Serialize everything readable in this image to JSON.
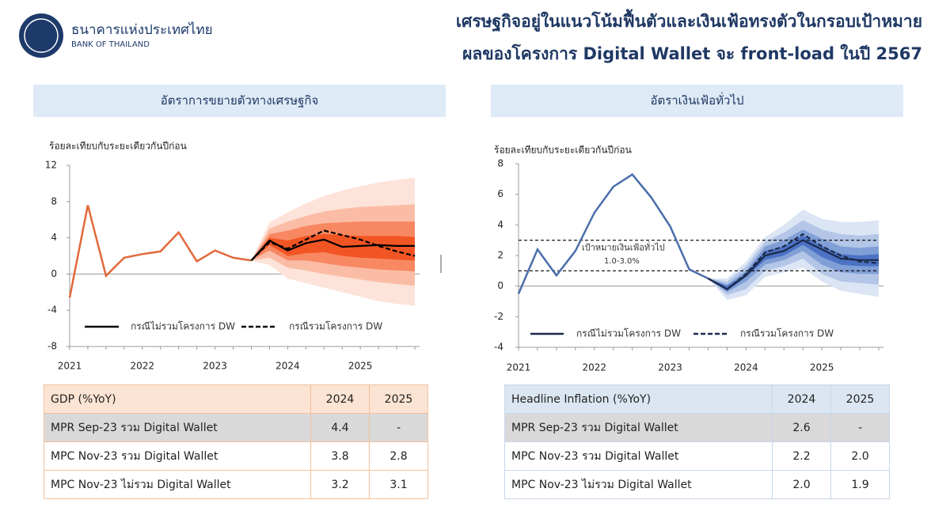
{
  "header": {
    "bank_name_th": "ธนาคารแห่งประเทศไทย",
    "bank_name_en": "BANK OF THAILAND",
    "title_lines": [
      "เศรษฐกิจอยู่ในแนวโน้มฟื้นตัวและเงินเฟ้อทรงตัวในกรอบเป้าหมาย",
      "ผลของโครงการ Digital Wallet จะ front-load ในปี 2567"
    ]
  },
  "chart_data": [
    {
      "type": "line",
      "title": "อัตราการขยายตัวทางเศรษฐกิจ",
      "y_label": "ร้อยละเทียบกับระยะเดียวกันปีก่อน",
      "categories": [
        "2021",
        null,
        null,
        null,
        "2022",
        null,
        null,
        null,
        "2023",
        null,
        null,
        null,
        "2024",
        null,
        null,
        null,
        "2025",
        null,
        null,
        null
      ],
      "ylim": [
        -8,
        12
      ],
      "yticks": [
        -8,
        -4,
        0,
        4,
        8,
        12
      ],
      "fan": [
        {
          "color": "#fde3d9",
          "upper": [
            null,
            null,
            null,
            null,
            null,
            null,
            null,
            null,
            null,
            null,
            1.5,
            5.7,
            6.8,
            7.8,
            8.6,
            9.2,
            9.7,
            10.1,
            10.4,
            10.6
          ],
          "lower": [
            null,
            null,
            null,
            null,
            null,
            null,
            null,
            null,
            null,
            null,
            1.5,
            1.0,
            -0.5,
            -1.0,
            -1.5,
            -2.0,
            -2.5,
            -3.0,
            -3.3,
            -3.5
          ]
        },
        {
          "color": "#fbbca6",
          "upper": [
            null,
            null,
            null,
            null,
            null,
            null,
            null,
            null,
            null,
            null,
            1.5,
            5.0,
            5.8,
            6.4,
            6.9,
            7.2,
            7.4,
            7.5,
            7.6,
            7.7
          ],
          "lower": [
            null,
            null,
            null,
            null,
            null,
            null,
            null,
            null,
            null,
            null,
            1.5,
            1.8,
            0.7,
            0.4,
            0,
            -0.3,
            -0.6,
            -0.9,
            -1.1,
            -1.3
          ]
        },
        {
          "color": "#f88862",
          "upper": [
            null,
            null,
            null,
            null,
            null,
            null,
            null,
            null,
            null,
            null,
            1.5,
            4.4,
            4.8,
            5.3,
            5.6,
            5.7,
            5.8,
            5.8,
            5.8,
            5.8
          ],
          "lower": [
            null,
            null,
            null,
            null,
            null,
            null,
            null,
            null,
            null,
            null,
            1.5,
            2.6,
            1.5,
            1.5,
            1.2,
            0.9,
            0.7,
            0.5,
            0.4,
            0.3
          ]
        },
        {
          "color": "#f25524",
          "upper": [
            null,
            null,
            null,
            null,
            null,
            null,
            null,
            null,
            null,
            null,
            1.5,
            4.0,
            3.7,
            4.2,
            4.4,
            4.3,
            4.2,
            4.2,
            4.2,
            4.1
          ],
          "lower": [
            null,
            null,
            null,
            null,
            null,
            null,
            null,
            null,
            null,
            null,
            1.5,
            3.2,
            2.0,
            2.3,
            2.4,
            2.0,
            1.8,
            1.7,
            1.6,
            1.5
          ]
        }
      ],
      "series": [
        {
          "color": "#e2693b",
          "values": [
            -2.6,
            7.6,
            -0.2,
            1.8,
            2.2,
            2.5,
            4.6,
            1.4,
            2.6,
            1.8,
            1.5,
            null,
            null,
            null,
            null,
            null,
            null,
            null,
            null,
            null
          ]
        },
        {
          "name": "กรณีไม่รวมโครงการ DW",
          "color": "#000000",
          "dash": false,
          "values": [
            null,
            null,
            null,
            null,
            null,
            null,
            null,
            null,
            null,
            null,
            1.5,
            3.7,
            2.6,
            3.4,
            3.8,
            3.0,
            3.1,
            3.2,
            3.1,
            3.1
          ]
        },
        {
          "name": "กรณีรวมโครงการ DW",
          "color": "#000000",
          "dash": true,
          "values": [
            null,
            null,
            null,
            null,
            null,
            null,
            null,
            null,
            null,
            null,
            1.5,
            3.5,
            2.8,
            3.8,
            4.8,
            4.3,
            3.8,
            3.1,
            2.5,
            2.0
          ]
        }
      ]
    },
    {
      "type": "line",
      "title": "อัตราเงินเฟ้อทั่วไป",
      "y_label": "ร้อยละเทียบกับระยะเดียวกันปีก่อน",
      "categories": [
        "2021",
        null,
        null,
        null,
        "2022",
        null,
        null,
        null,
        "2023",
        null,
        null,
        null,
        "2024",
        null,
        null,
        null,
        "2025",
        null,
        null,
        null
      ],
      "ylim": [
        -4,
        8
      ],
      "yticks": [
        -4,
        -2,
        0,
        2,
        4,
        6,
        8
      ],
      "target_lines": [
        1,
        3
      ],
      "target_label": "เป้าหมายเงินเฟ้อทั่วไป",
      "target_range_label": "1.0-3.0%",
      "fan": [
        {
          "color": "#dbe5f4",
          "upper": [
            null,
            null,
            null,
            null,
            null,
            null,
            null,
            null,
            null,
            null,
            0.5,
            0.5,
            1.6,
            3.2,
            4.0,
            5.0,
            4.4,
            4.2,
            4.2,
            4.3
          ],
          "lower": [
            null,
            null,
            null,
            null,
            null,
            null,
            null,
            null,
            null,
            null,
            0.5,
            -0.9,
            -0.6,
            0.6,
            0.9,
            1.2,
            0.3,
            -0.3,
            -0.5,
            -0.7
          ]
        },
        {
          "color": "#b3c6e7",
          "upper": [
            null,
            null,
            null,
            null,
            null,
            null,
            null,
            null,
            null,
            null,
            0.5,
            0.3,
            1.3,
            2.9,
            3.5,
            4.3,
            3.7,
            3.4,
            3.3,
            3.4
          ],
          "lower": [
            null,
            null,
            null,
            null,
            null,
            null,
            null,
            null,
            null,
            null,
            0.5,
            -0.6,
            -0.2,
            1.0,
            1.3,
            1.8,
            0.8,
            0.3,
            0.2,
            0.1
          ]
        },
        {
          "color": "#809fd6",
          "upper": [
            null,
            null,
            null,
            null,
            null,
            null,
            null,
            null,
            null,
            null,
            0.5,
            0.1,
            1.0,
            2.6,
            3.0,
            3.7,
            3.1,
            2.6,
            2.5,
            2.6
          ],
          "lower": [
            null,
            null,
            null,
            null,
            null,
            null,
            null,
            null,
            null,
            null,
            0.5,
            -0.4,
            0.3,
            1.4,
            1.7,
            2.3,
            1.4,
            0.9,
            0.8,
            0.8
          ]
        },
        {
          "color": "#4b72c4",
          "upper": [
            null,
            null,
            null,
            null,
            null,
            null,
            null,
            null,
            null,
            null,
            0.5,
            0,
            0.8,
            2.3,
            2.6,
            3.3,
            2.6,
            2.1,
            2.0,
            2.1
          ],
          "lower": [
            null,
            null,
            null,
            null,
            null,
            null,
            null,
            null,
            null,
            null,
            0.5,
            -0.3,
            0.6,
            1.7,
            2.0,
            2.7,
            1.9,
            1.4,
            1.3,
            1.3
          ]
        }
      ],
      "series": [
        {
          "color": "#4a6eab",
          "values": [
            -0.5,
            2.4,
            0.7,
            2.3,
            4.8,
            6.5,
            7.3,
            5.8,
            3.9,
            1.1,
            0.5,
            null,
            null,
            null,
            null,
            null,
            null,
            null,
            null,
            null
          ]
        },
        {
          "name": "กรณีไม่รวมโครงการ DW",
          "color": "#1c2b4b",
          "dash": false,
          "values": [
            null,
            null,
            null,
            null,
            null,
            null,
            null,
            null,
            null,
            null,
            0.5,
            -0.2,
            0.7,
            2.0,
            2.3,
            3.0,
            2.4,
            1.8,
            1.7,
            1.7
          ]
        },
        {
          "name": "กรณีรวมโครงการ DW",
          "color": "#1c2b4b",
          "dash": true,
          "values": [
            null,
            null,
            null,
            null,
            null,
            null,
            null,
            null,
            null,
            null,
            0.5,
            -0.2,
            0.8,
            2.2,
            2.6,
            3.4,
            2.6,
            2.0,
            1.6,
            1.5
          ]
        }
      ]
    }
  ],
  "tables": [
    {
      "header": [
        "GDP (%YoY)",
        "2024",
        "2025"
      ],
      "rows": [
        [
          "MPR Sep-23 รวม Digital Wallet",
          "4.4",
          "-"
        ],
        [
          "MPC Nov-23 รวม Digital Wallet",
          "3.8",
          "2.8"
        ],
        [
          "MPC Nov-23 ไม่รวม Digital Wallet",
          "3.2",
          "3.1"
        ]
      ]
    },
    {
      "header": [
        "Headline Inflation (%YoY)",
        "2024",
        "2025"
      ],
      "rows": [
        [
          "MPR Sep-23 รวม Digital Wallet",
          "2.6",
          "-"
        ],
        [
          "MPC Nov-23 รวม Digital Wallet",
          "2.2",
          "2.0"
        ],
        [
          "MPC Nov-23 ไม่รวม Digital Wallet",
          "2.0",
          "1.9"
        ]
      ]
    }
  ]
}
